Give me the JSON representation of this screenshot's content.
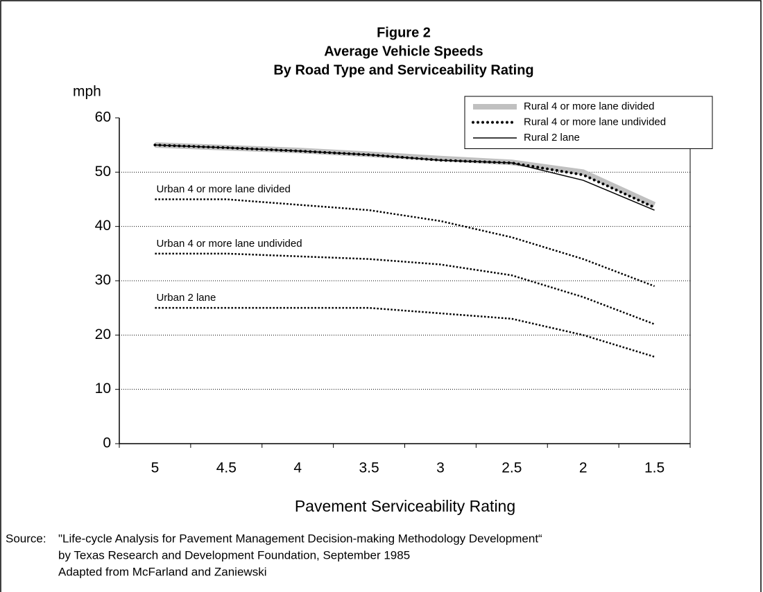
{
  "chart_data": {
    "type": "line",
    "title": [
      "Figure 2",
      "Average Vehicle Speeds",
      "By Road Type and Serviceability Rating"
    ],
    "y_label": "mph",
    "x_label": "Pavement Serviceability Rating",
    "categories": [
      "5",
      "4.5",
      "4",
      "3.5",
      "3",
      "2.5",
      "2",
      "1.5"
    ],
    "ylim": [
      0,
      60
    ],
    "yticks": [
      0,
      10,
      20,
      30,
      40,
      50,
      60
    ],
    "grid": true,
    "legend": "upper right",
    "series": [
      {
        "name": "Rural 4 or more lane divided",
        "color": "#c0c0c0",
        "style": "thick",
        "labeling": "legend",
        "values": [
          55,
          54.5,
          54,
          53.3,
          52.5,
          51.8,
          50,
          44
        ]
      },
      {
        "name": "Rural 4 or more lane undivided",
        "color": "#000000",
        "style": "round-dots",
        "labeling": "legend",
        "values": [
          55,
          54.5,
          53.9,
          53.2,
          52.2,
          51.7,
          49.5,
          43.5
        ]
      },
      {
        "name": "Rural 2 lane",
        "color": "#000000",
        "style": "solid",
        "labeling": "legend",
        "values": [
          55,
          54.5,
          53.9,
          53.2,
          52.2,
          51.7,
          48.5,
          43
        ]
      },
      {
        "name": "Urban 4 or more lane divided",
        "color": "#000000",
        "style": "fine-dots",
        "labeling": "inline",
        "values": [
          45,
          45,
          44,
          43,
          41,
          38,
          34,
          29
        ]
      },
      {
        "name": "Urban 4 or more lane undivided",
        "color": "#000000",
        "style": "fine-dots",
        "labeling": "inline",
        "values": [
          35,
          35,
          34.5,
          34,
          33,
          31,
          27,
          22
        ]
      },
      {
        "name": "Urban 2 lane",
        "color": "#000000",
        "style": "fine-dots",
        "labeling": "inline",
        "values": [
          25,
          25,
          25,
          25,
          24,
          23,
          20,
          16
        ]
      }
    ],
    "source_label": "Source:",
    "source": [
      "\"Life-cycle Analysis for Pavement Management Decision-making Methodology Development“",
      "by Texas Research and Development Foundation, September 1985",
      "Adapted from McFarland and Zaniewski"
    ]
  }
}
